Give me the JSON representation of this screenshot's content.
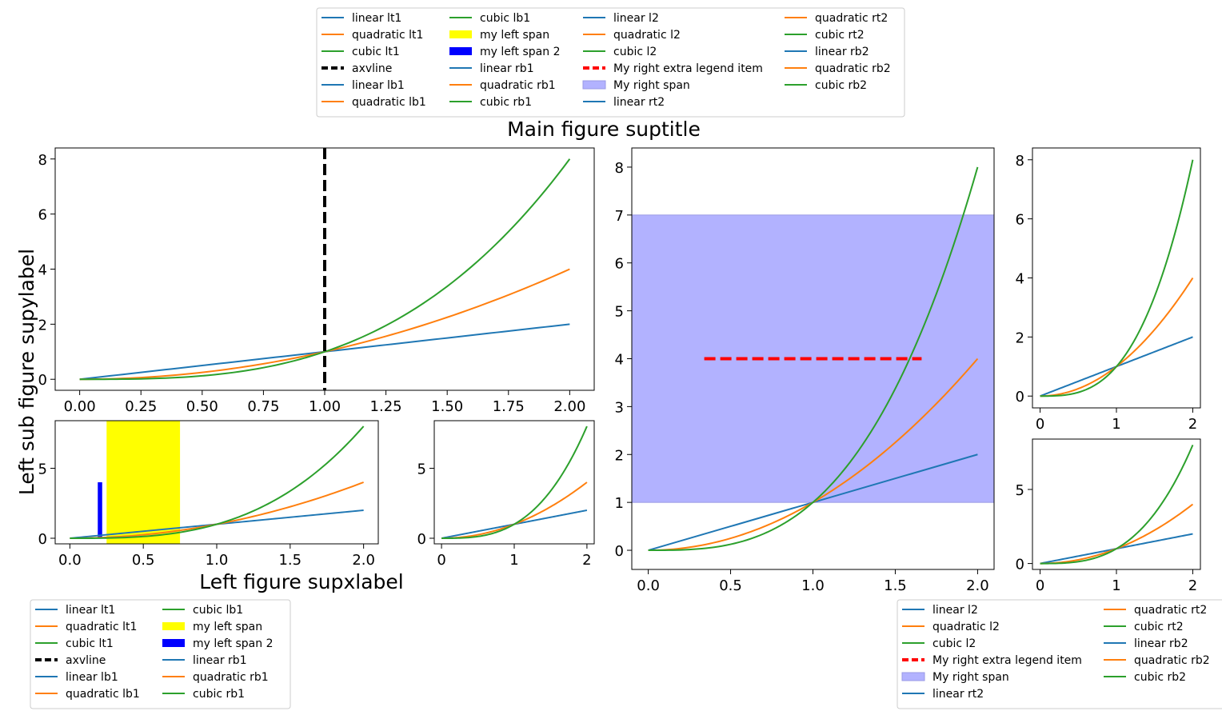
{
  "figure": {
    "suptitle": "Main figure suptitle",
    "left_supylabel": "Left sub figure supylabel",
    "left_supxlabel": "Left figure supxlabel"
  },
  "colors": {
    "linear": "#1f77b4",
    "quadratic": "#ff7f0e",
    "cubic": "#2ca02c",
    "axvline": "#000000",
    "left_span": "#ffff00",
    "left_span_2": "#0000ff",
    "right_extra": "#ff0000",
    "right_span_fill": "#b2b2ff",
    "right_span_edge": "#9999e6"
  },
  "chart_data": [
    {
      "id": "lt1",
      "type": "line",
      "x": [
        0,
        0.25,
        0.5,
        0.75,
        1.0,
        1.25,
        1.5,
        1.75,
        2.0
      ],
      "series": [
        {
          "name": "linear lt1",
          "function": "x",
          "color": "#1f77b4"
        },
        {
          "name": "quadratic lt1",
          "function": "x^2",
          "color": "#ff7f0e"
        },
        {
          "name": "cubic lt1",
          "function": "x^3",
          "color": "#2ca02c"
        }
      ],
      "extras": [
        {
          "name": "axvline",
          "type": "vline",
          "x": 1.0,
          "style": "dashed",
          "color": "#000000"
        }
      ],
      "xticks": [
        "0.00",
        "0.25",
        "0.50",
        "0.75",
        "1.00",
        "1.25",
        "1.50",
        "1.75",
        "2.00"
      ],
      "yticks": [
        "0",
        "2",
        "4",
        "6",
        "8"
      ],
      "xlim": [
        -0.1,
        2.1
      ],
      "ylim": [
        -0.4,
        8.4
      ]
    },
    {
      "id": "lb1",
      "type": "line",
      "x": [
        0,
        0.5,
        1.0,
        1.5,
        2.0
      ],
      "series": [
        {
          "name": "linear lb1",
          "function": "x",
          "color": "#1f77b4"
        },
        {
          "name": "quadratic lb1",
          "function": "x^2",
          "color": "#ff7f0e"
        },
        {
          "name": "cubic lb1",
          "function": "x^3",
          "color": "#2ca02c"
        }
      ],
      "extras": [
        {
          "name": "my left span",
          "type": "vspan",
          "x0": 0.25,
          "x1": 0.75,
          "color": "#ffff00"
        },
        {
          "name": "my left span 2",
          "type": "bar",
          "x0": 0.19,
          "x1": 0.22,
          "y0": 0,
          "y1": 4,
          "color": "#0000ff"
        }
      ],
      "xticks": [
        "0.0",
        "0.5",
        "1.0",
        "1.5",
        "2.0"
      ],
      "yticks": [
        "0",
        "5"
      ],
      "xlim": [
        -0.1,
        2.1
      ],
      "ylim": [
        -0.4,
        8.4
      ]
    },
    {
      "id": "rb1",
      "type": "line",
      "x": [
        0,
        1,
        2
      ],
      "series": [
        {
          "name": "linear rb1",
          "function": "x",
          "color": "#1f77b4"
        },
        {
          "name": "quadratic rb1",
          "function": "x^2",
          "color": "#ff7f0e"
        },
        {
          "name": "cubic rb1",
          "function": "x^3",
          "color": "#2ca02c"
        }
      ],
      "xticks": [
        "0",
        "1",
        "2"
      ],
      "yticks": [
        "0",
        "5"
      ],
      "xlim": [
        -0.1,
        2.1
      ],
      "ylim": [
        -0.4,
        8.4
      ]
    },
    {
      "id": "l2",
      "type": "line",
      "x": [
        0,
        0.5,
        1.0,
        1.5,
        2.0
      ],
      "series": [
        {
          "name": "linear l2",
          "function": "x",
          "color": "#1f77b4"
        },
        {
          "name": "quadratic l2",
          "function": "x^2",
          "color": "#ff7f0e"
        },
        {
          "name": "cubic l2",
          "function": "x^3",
          "color": "#2ca02c"
        }
      ],
      "extras": [
        {
          "name": "My right span",
          "type": "hspan",
          "y0": 1,
          "y1": 7,
          "color": "#b2b2ff"
        },
        {
          "name": "My right extra legend item",
          "type": "hline",
          "y": 4,
          "x0": 0.34,
          "x1": 1.66,
          "style": "dashed",
          "color": "#ff0000"
        }
      ],
      "xticks": [
        "0.0",
        "0.5",
        "1.0",
        "1.5",
        "2.0"
      ],
      "yticks": [
        "0",
        "1",
        "2",
        "3",
        "4",
        "5",
        "6",
        "7",
        "8"
      ],
      "xlim": [
        -0.1,
        2.1
      ],
      "ylim": [
        -0.4,
        8.4
      ]
    },
    {
      "id": "rt2",
      "type": "line",
      "x": [
        0,
        1,
        2
      ],
      "series": [
        {
          "name": "linear rt2",
          "function": "x",
          "color": "#1f77b4"
        },
        {
          "name": "quadratic rt2",
          "function": "x^2",
          "color": "#ff7f0e"
        },
        {
          "name": "cubic rt2",
          "function": "x^3",
          "color": "#2ca02c"
        }
      ],
      "xticks": [
        "0",
        "1",
        "2"
      ],
      "yticks": [
        "0",
        "2",
        "4",
        "6",
        "8"
      ],
      "xlim": [
        -0.1,
        2.1
      ],
      "ylim": [
        -0.4,
        8.4
      ]
    },
    {
      "id": "rb2",
      "type": "line",
      "x": [
        0,
        1,
        2
      ],
      "series": [
        {
          "name": "linear rb2",
          "function": "x",
          "color": "#1f77b4"
        },
        {
          "name": "quadratic rb2",
          "function": "x^2",
          "color": "#ff7f0e"
        },
        {
          "name": "cubic rb2",
          "function": "x^3",
          "color": "#2ca02c"
        }
      ],
      "xticks": [
        "0",
        "1",
        "2"
      ],
      "yticks": [
        "0",
        "5"
      ],
      "xlim": [
        -0.1,
        2.1
      ],
      "ylim": [
        -0.4,
        8.4
      ]
    }
  ],
  "legends": {
    "top": {
      "placement": "top-center",
      "columns": 4,
      "items": [
        {
          "label": "linear lt1",
          "kind": "line",
          "color": "#1f77b4"
        },
        {
          "label": "quadratic lt1",
          "kind": "line",
          "color": "#ff7f0e"
        },
        {
          "label": "cubic lt1",
          "kind": "line",
          "color": "#2ca02c"
        },
        {
          "label": "axvline",
          "kind": "dashed",
          "color": "#000000"
        },
        {
          "label": "linear lb1",
          "kind": "line",
          "color": "#1f77b4"
        },
        {
          "label": "quadratic lb1",
          "kind": "line",
          "color": "#ff7f0e"
        },
        {
          "label": "cubic lb1",
          "kind": "line",
          "color": "#2ca02c"
        },
        {
          "label": "my left span",
          "kind": "patch",
          "color": "#ffff00"
        },
        {
          "label": "my left span 2",
          "kind": "patch",
          "color": "#0000ff"
        },
        {
          "label": "linear rb1",
          "kind": "line",
          "color": "#1f77b4"
        },
        {
          "label": "quadratic rb1",
          "kind": "line",
          "color": "#ff7f0e"
        },
        {
          "label": "cubic rb1",
          "kind": "line",
          "color": "#2ca02c"
        },
        {
          "label": "linear l2",
          "kind": "line",
          "color": "#1f77b4"
        },
        {
          "label": "quadratic l2",
          "kind": "line",
          "color": "#ff7f0e"
        },
        {
          "label": "cubic l2",
          "kind": "line",
          "color": "#2ca02c"
        },
        {
          "label": "My right extra legend item",
          "kind": "dashed",
          "color": "#ff0000"
        },
        {
          "label": "My right span",
          "kind": "patch-light",
          "color": "#b2b2ff"
        },
        {
          "label": "linear rt2",
          "kind": "line",
          "color": "#1f77b4"
        },
        {
          "label": "quadratic rt2",
          "kind": "line",
          "color": "#ff7f0e"
        },
        {
          "label": "cubic rt2",
          "kind": "line",
          "color": "#2ca02c"
        },
        {
          "label": "linear rb2",
          "kind": "line",
          "color": "#1f77b4"
        },
        {
          "label": "quadratic rb2",
          "kind": "line",
          "color": "#ff7f0e"
        },
        {
          "label": "cubic rb2",
          "kind": "line",
          "color": "#2ca02c"
        }
      ]
    },
    "left": {
      "placement": "bottom-left",
      "columns": 2,
      "items": [
        {
          "label": "linear lt1",
          "kind": "line",
          "color": "#1f77b4"
        },
        {
          "label": "quadratic lt1",
          "kind": "line",
          "color": "#ff7f0e"
        },
        {
          "label": "cubic lt1",
          "kind": "line",
          "color": "#2ca02c"
        },
        {
          "label": "axvline",
          "kind": "dashed",
          "color": "#000000"
        },
        {
          "label": "linear lb1",
          "kind": "line",
          "color": "#1f77b4"
        },
        {
          "label": "quadratic lb1",
          "kind": "line",
          "color": "#ff7f0e"
        },
        {
          "label": "cubic lb1",
          "kind": "line",
          "color": "#2ca02c"
        },
        {
          "label": "my left span",
          "kind": "patch",
          "color": "#ffff00"
        },
        {
          "label": "my left span 2",
          "kind": "patch",
          "color": "#0000ff"
        },
        {
          "label": "linear rb1",
          "kind": "line",
          "color": "#1f77b4"
        },
        {
          "label": "quadratic rb1",
          "kind": "line",
          "color": "#ff7f0e"
        },
        {
          "label": "cubic rb1",
          "kind": "line",
          "color": "#2ca02c"
        }
      ]
    },
    "right": {
      "placement": "bottom-right",
      "columns": 2,
      "items": [
        {
          "label": "linear l2",
          "kind": "line",
          "color": "#1f77b4"
        },
        {
          "label": "quadratic l2",
          "kind": "line",
          "color": "#ff7f0e"
        },
        {
          "label": "cubic l2",
          "kind": "line",
          "color": "#2ca02c"
        },
        {
          "label": "My right extra legend item",
          "kind": "dashed",
          "color": "#ff0000"
        },
        {
          "label": "My right span",
          "kind": "patch-light",
          "color": "#b2b2ff"
        },
        {
          "label": "linear rt2",
          "kind": "line",
          "color": "#1f77b4"
        },
        {
          "label": "quadratic rt2",
          "kind": "line",
          "color": "#ff7f0e"
        },
        {
          "label": "cubic rt2",
          "kind": "line",
          "color": "#2ca02c"
        },
        {
          "label": "linear rb2",
          "kind": "line",
          "color": "#1f77b4"
        },
        {
          "label": "quadratic rb2",
          "kind": "line",
          "color": "#ff7f0e"
        },
        {
          "label": "cubic rb2",
          "kind": "line",
          "color": "#2ca02c"
        }
      ]
    }
  }
}
